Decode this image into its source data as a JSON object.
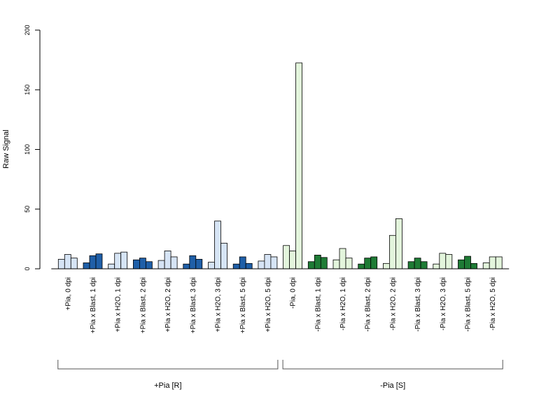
{
  "chart_data": {
    "type": "bar",
    "ylabel": "Raw Signal",
    "ylim": [
      0,
      200
    ],
    "yticks": [
      0,
      50,
      100,
      150,
      200
    ],
    "grid": false,
    "categories": [
      "+Pia, 0 dpi",
      "+Pia x Blast, 1 dpi",
      "+Pia x H2O, 1 dpi",
      "+Pia x Blast, 2 dpi",
      "+Pia x H2O, 2 dpi",
      "+Pia x Blast, 3 dpi",
      "+Pia x H2O, 3 dpi",
      "+Pia x Blast, 5 dpi",
      "+Pia x H2O, 5 dpi",
      "-Pia, 0 dpi",
      "-Pia x Blast, 1 dpi",
      "-Pia x H2O, 1 dpi",
      "-Pia x Blast, 2 dpi",
      "-Pia x H2O, 2 dpi",
      "-Pia x Blast, 3 dpi",
      "-Pia x H2O, 3 dpi",
      "-Pia x Blast, 5 dpi",
      "-Pia x H2O, 5 dpi"
    ],
    "replicate_values": [
      [
        8,
        12,
        9
      ],
      [
        5,
        11,
        12.5
      ],
      [
        4,
        13,
        14
      ],
      [
        7.5,
        9,
        6
      ],
      [
        7,
        15,
        10
      ],
      [
        4,
        11,
        8
      ],
      [
        5.5,
        40,
        21.5
      ],
      [
        4,
        10,
        4.5
      ],
      [
        6.5,
        12,
        10
      ],
      [
        19.5,
        15,
        172.5
      ],
      [
        6,
        11.5,
        9.5
      ],
      [
        7.5,
        17,
        9
      ],
      [
        4,
        9,
        10
      ],
      [
        4.5,
        28,
        42
      ],
      [
        6,
        9,
        6
      ],
      [
        4,
        13,
        12
      ],
      [
        7.5,
        10.5,
        4.5
      ],
      [
        5,
        10,
        10
      ]
    ],
    "bar_colors": [
      "#d6e4f5",
      "#1f5fa8",
      "#d6e4f5",
      "#1f5fa8",
      "#d6e4f5",
      "#1f5fa8",
      "#d6e4f5",
      "#1f5fa8",
      "#d6e4f5",
      "#e3f5dc",
      "#1e7b35",
      "#e3f5dc",
      "#1e7b35",
      "#e3f5dc",
      "#1e7b35",
      "#e3f5dc",
      "#1e7b35",
      "#e3f5dc"
    ],
    "groups": [
      {
        "label": "+Pia [R]",
        "from": 0,
        "to": 8
      },
      {
        "label": "-Pia [S]",
        "from": 9,
        "to": 17
      }
    ]
  }
}
